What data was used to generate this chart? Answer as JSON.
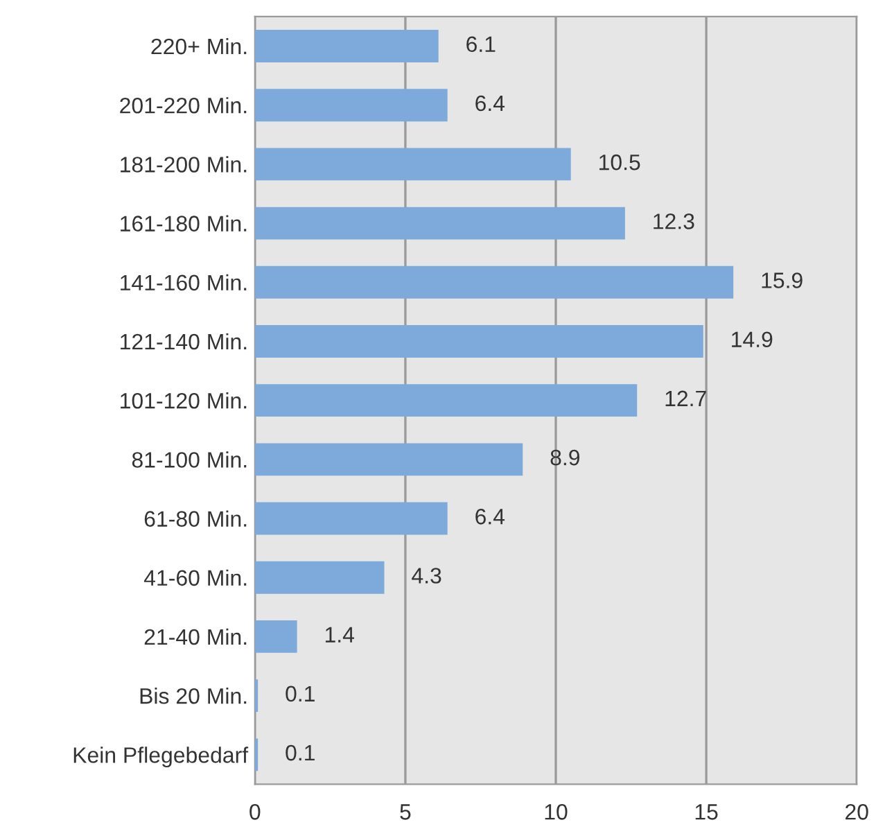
{
  "chart_data": {
    "type": "bar",
    "orientation": "horizontal",
    "categories": [
      "220+ Min.",
      "201-220 Min.",
      "181-200 Min.",
      "161-180 Min.",
      "141-160 Min.",
      "121-140 Min.",
      "101-120 Min.",
      "81-100 Min.",
      "61-80 Min.",
      "41-60 Min.",
      "21-40 Min.",
      "Bis 20 Min.",
      "Kein Pflegebedarf"
    ],
    "values": [
      6.1,
      6.4,
      10.5,
      12.3,
      15.9,
      14.9,
      12.7,
      8.9,
      6.4,
      4.3,
      1.4,
      0.1,
      0.1
    ],
    "color": "#7eaadb",
    "xlim": [
      0,
      20
    ],
    "xticks": [
      0,
      5,
      10,
      15,
      20
    ],
    "grid": "x",
    "data_labels": true
  }
}
